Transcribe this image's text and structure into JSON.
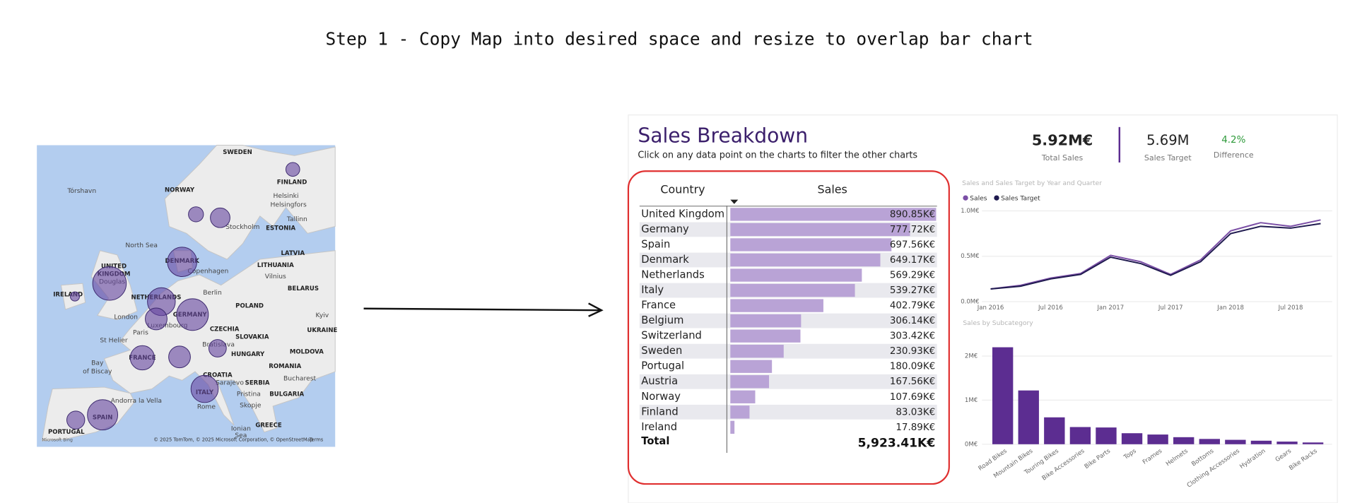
{
  "caption": "Step 1 - Copy Map into desired space and resize to overlap bar chart",
  "map": {
    "labels": [
      "SWEDEN",
      "FINLAND",
      "NORWAY",
      "Tórshavn",
      "Helsinki",
      "Helsingfors",
      "Tallinn",
      "ESTONIA",
      "Stockholm",
      "North Sea",
      "LATVIA",
      "DENMARK",
      "Copenhagen",
      "LITHUANIA",
      "UNITED",
      "KINGDOM",
      "Douglas",
      "Vilnius",
      "BELARUS",
      "IRELAND",
      "NETHERLANDS",
      "Berlin",
      "POLAND",
      "London",
      "GERMANY",
      "Kyiv",
      "Paris",
      "Luxembourg",
      "CZECHIA",
      "SLOVAKIA",
      "UKRAINE",
      "St Helier",
      "MOLDOVA",
      "FRANCE",
      "Bratislava",
      "HUNGARY",
      "Bay",
      "of Biscay",
      "ROMANIA",
      "CROATIA",
      "Bucharest",
      "Sarajevo",
      "SERBIA",
      "ITALY",
      "Pristina",
      "BULGARIA",
      "Andorra la Vella",
      "Skopje",
      "Rome",
      "SPAIN",
      "PORTUGAL",
      "GREECE",
      "Ionian",
      "Sea"
    ],
    "attribution": "© 2025 TomTom, © 2025 Microsoft Corporation, © OpenStreetMap",
    "terms": "Terms",
    "logo": "Microsoft Bing"
  },
  "dashboard": {
    "title": "Sales Breakdown",
    "subtitle": "Click on any data point on the charts to filter the other charts",
    "kpis": [
      {
        "value": "5.92M€",
        "label": "Total Sales"
      },
      {
        "value": "5.69M",
        "label": "Sales Target"
      },
      {
        "value": "4.2%",
        "label": "Difference"
      }
    ]
  },
  "chart_data": [
    {
      "type": "table",
      "columns": [
        "Country",
        "Sales"
      ],
      "categories": [
        "United Kingdom",
        "Germany",
        "Spain",
        "Denmark",
        "Netherlands",
        "Italy",
        "France",
        "Belgium",
        "Switzerland",
        "Sweden",
        "Portugal",
        "Austria",
        "Norway",
        "Finland",
        "Ireland"
      ],
      "values": [
        890.85,
        777.72,
        697.56,
        649.17,
        569.29,
        539.27,
        402.79,
        306.14,
        303.42,
        230.93,
        180.09,
        167.56,
        107.69,
        83.03,
        17.89
      ],
      "value_labels": [
        "890.85K€",
        "777.72K€",
        "697.56K€",
        "649.17K€",
        "569.29K€",
        "539.27K€",
        "402.79K€",
        "306.14K€",
        "303.42K€",
        "230.93K€",
        "180.09K€",
        "167.56K€",
        "107.69K€",
        "83.03K€",
        "17.89K€"
      ],
      "total": {
        "label": "Total",
        "value": "5,923.41K€"
      },
      "color": "#b9a3d6"
    },
    {
      "type": "line",
      "title": "Sales and Sales Target by Year and Quarter",
      "categories": [
        "Jan 2016",
        null,
        "Jul 2016",
        null,
        "Jan 2017",
        null,
        "Jul 2017",
        null,
        "Jan 2018",
        null,
        "Jul 2018",
        null
      ],
      "series": [
        {
          "name": "Sales",
          "color": "#7b4fa6",
          "values": [
            0.14,
            0.18,
            0.26,
            0.31,
            0.51,
            0.44,
            0.3,
            0.46,
            0.78,
            0.87,
            0.83,
            0.9
          ]
        },
        {
          "name": "Sales Target",
          "color": "#1f1a4f",
          "values": [
            0.14,
            0.17,
            0.25,
            0.3,
            0.49,
            0.42,
            0.29,
            0.44,
            0.75,
            0.83,
            0.81,
            0.86
          ]
        }
      ],
      "ylim": [
        0,
        1.0
      ],
      "yticks": [
        {
          "value": 0,
          "label": "0.0M€"
        },
        {
          "value": 0.5,
          "label": "0.5M€"
        },
        {
          "value": 1.0,
          "label": "1.0M€"
        }
      ],
      "grid": true,
      "legend": "top-left"
    },
    {
      "type": "bar",
      "title": "Sales by Subcategory",
      "categories": [
        "Road Bikes",
        "Mountain Bikes",
        "Touring Bikes",
        "Bike Accessories",
        "Bike Parts",
        "Tops",
        "Frames",
        "Helmets",
        "Bottoms",
        "Clothing Accessories",
        "Hydration",
        "Gears",
        "Bike Racks"
      ],
      "values": [
        2.2,
        1.22,
        0.61,
        0.39,
        0.38,
        0.25,
        0.22,
        0.16,
        0.12,
        0.1,
        0.08,
        0.06,
        0.04
      ],
      "color": "#5c2d91",
      "ylim": [
        0,
        2.3
      ],
      "yticks": [
        {
          "value": 0,
          "label": "0M€"
        },
        {
          "value": 1,
          "label": "1M€"
        },
        {
          "value": 2,
          "label": "2M€"
        }
      ],
      "grid": true
    }
  ]
}
